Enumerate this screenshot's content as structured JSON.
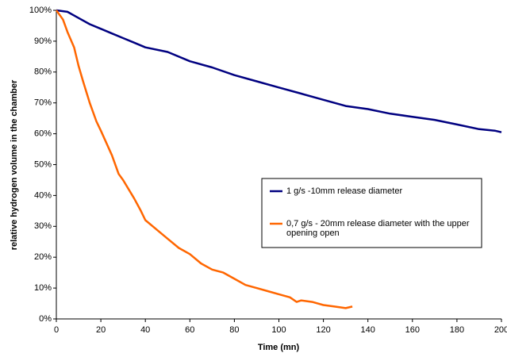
{
  "chart_data": {
    "type": "line",
    "x_label": "Time (mn)",
    "y_label": "relative hydrogen volume in the chamber",
    "xlim": [
      0,
      200
    ],
    "xticks": [
      0,
      20,
      40,
      60,
      80,
      100,
      120,
      140,
      160,
      180,
      200
    ],
    "ylim": [
      0,
      100
    ],
    "yticks": [
      {
        "value": 0,
        "label": "0%"
      },
      {
        "value": 10,
        "label": "10%"
      },
      {
        "value": 20,
        "label": "20%"
      },
      {
        "value": 30,
        "label": "30%"
      },
      {
        "value": 40,
        "label": "40%"
      },
      {
        "value": 50,
        "label": "50%"
      },
      {
        "value": 60,
        "label": "60%"
      },
      {
        "value": 70,
        "label": "70%"
      },
      {
        "value": 80,
        "label": "80%"
      },
      {
        "value": 90,
        "label": "90%"
      },
      {
        "value": 100,
        "label": "100%"
      }
    ],
    "series": [
      {
        "name": "1 g/s -10mm release diameter",
        "color": "#000080",
        "x": [
          0,
          5,
          10,
          15,
          20,
          25,
          30,
          35,
          40,
          50,
          60,
          70,
          80,
          90,
          100,
          110,
          120,
          130,
          140,
          150,
          160,
          170,
          180,
          190,
          197,
          200
        ],
        "values": [
          100,
          99.5,
          97.5,
          95.5,
          94,
          92.5,
          91,
          89.5,
          88,
          86.5,
          83.5,
          81.5,
          79,
          77,
          75,
          73,
          71,
          69,
          68,
          66.5,
          65.5,
          64.5,
          63,
          61.5,
          61,
          60.5
        ]
      },
      {
        "name": "0,7 g/s - 20mm release diameter with the upper opening open",
        "color": "#ff6600",
        "x": [
          0,
          3,
          5,
          8,
          10,
          12,
          15,
          18,
          20,
          25,
          28,
          30,
          35,
          38,
          40,
          45,
          50,
          55,
          60,
          65,
          70,
          75,
          80,
          85,
          90,
          95,
          100,
          105,
          108,
          110,
          115,
          120,
          125,
          130,
          133
        ],
        "values": [
          100,
          97,
          93,
          88,
          82,
          77,
          70,
          64,
          61,
          53,
          47,
          45,
          39,
          35,
          32,
          29,
          26,
          23,
          21,
          18,
          16,
          15,
          13,
          11,
          10,
          9,
          8,
          7,
          5.5,
          6,
          5.5,
          4.5,
          4,
          3.5,
          4
        ]
      }
    ]
  }
}
